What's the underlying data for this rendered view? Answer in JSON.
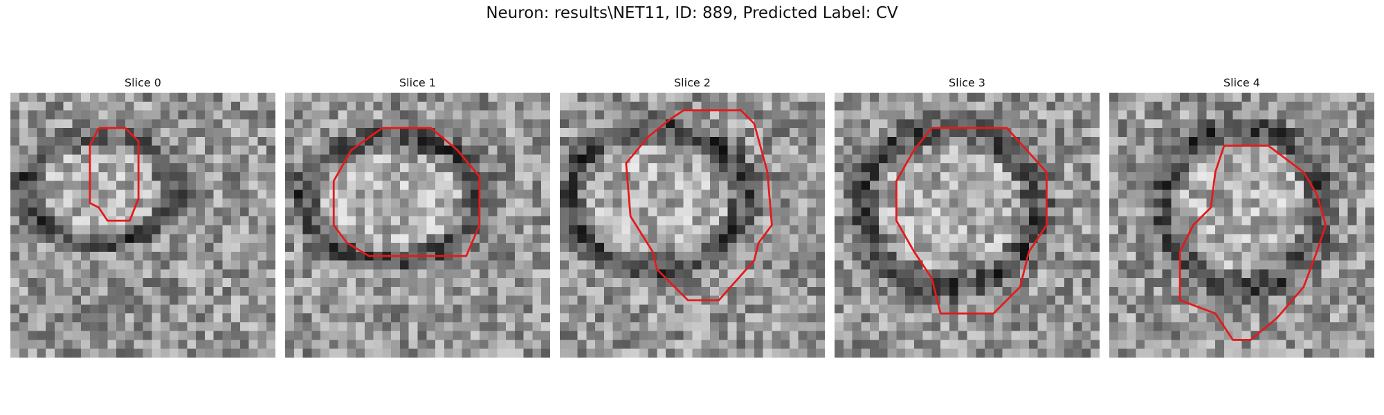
{
  "figure": {
    "title": "Neuron: results\\NET11, ID: 889, Predicted Label: CV"
  },
  "panels": [
    {
      "label": "Slice 0"
    },
    {
      "label": "Slice 1"
    },
    {
      "label": "Slice 2"
    },
    {
      "label": "Slice 3"
    },
    {
      "label": "Slice 4"
    }
  ],
  "colors": {
    "background": "#ffffff",
    "contour": "#e41a1c"
  }
}
